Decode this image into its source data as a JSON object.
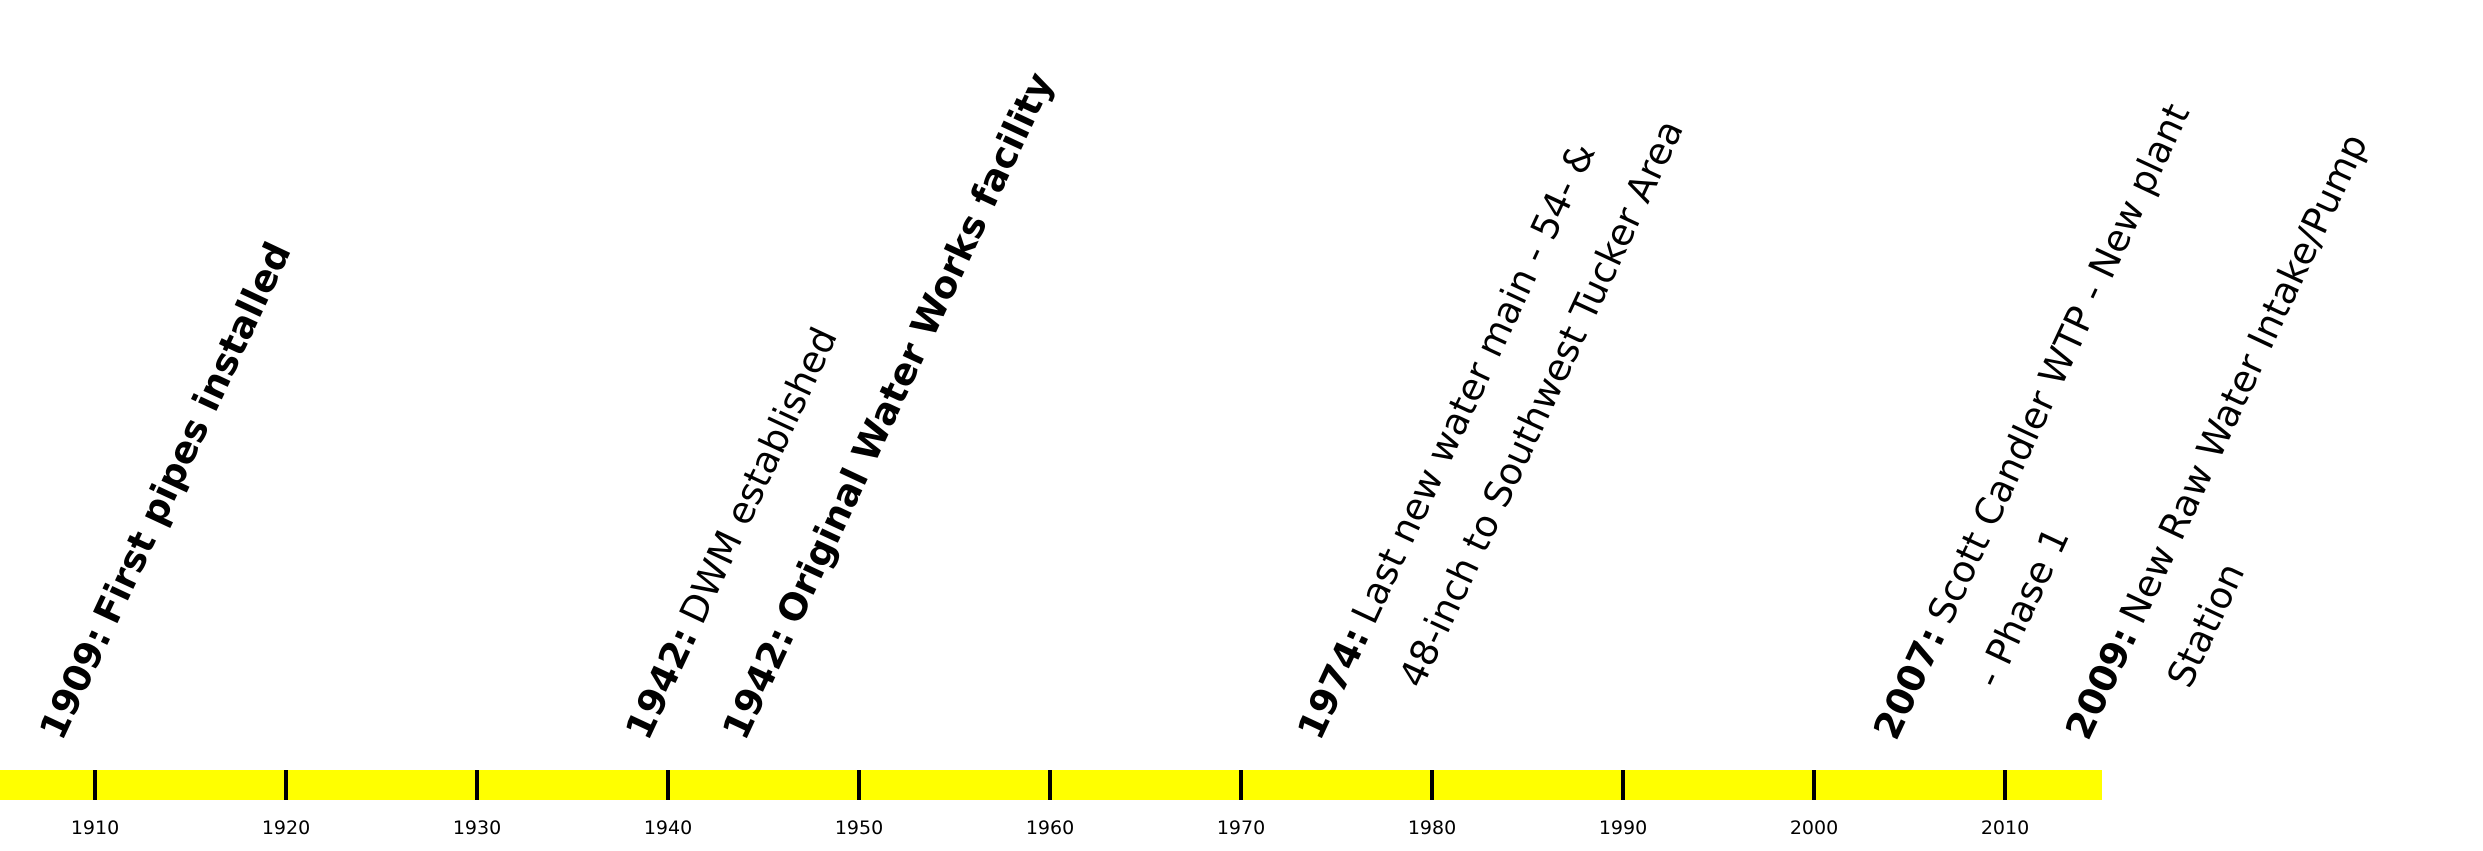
{
  "timeline": {
    "axis": {
      "color": "#ffff00",
      "range": [
        1905,
        2015
      ],
      "ticks": [
        1910,
        1920,
        1930,
        1940,
        1950,
        1960,
        1970,
        1980,
        1990,
        2000,
        2010
      ],
      "tick_labels": [
        "1910",
        "1920",
        "1930",
        "1940",
        "1950",
        "1960",
        "1970",
        "1980",
        "1990",
        "2000",
        "2010"
      ]
    },
    "events": [
      {
        "year": 1909,
        "year_text": "1909:",
        "lines": [
          "First pipes installed"
        ],
        "bold": true
      },
      {
        "year": 1942,
        "year_text": "1942:",
        "lines": [
          "DWM established"
        ],
        "bold": false
      },
      {
        "year": 1942,
        "year_text": "1942:",
        "lines": [
          "Original Water Works facility"
        ],
        "bold": true
      },
      {
        "year": 1974,
        "year_text": "1974:",
        "lines": [
          "Last new water main - 54- &",
          "48-inch to Southwest Tucker Area"
        ],
        "bold": false
      },
      {
        "year": 2007,
        "year_text": "2007:",
        "lines": [
          "Scott Candler WTP - New plant",
          "- Phase 1"
        ],
        "bold": false
      },
      {
        "year": 2009,
        "year_text": "2009:",
        "lines": [
          "New Raw Water Intake/Pump",
          "Station"
        ],
        "bold": false
      }
    ]
  }
}
